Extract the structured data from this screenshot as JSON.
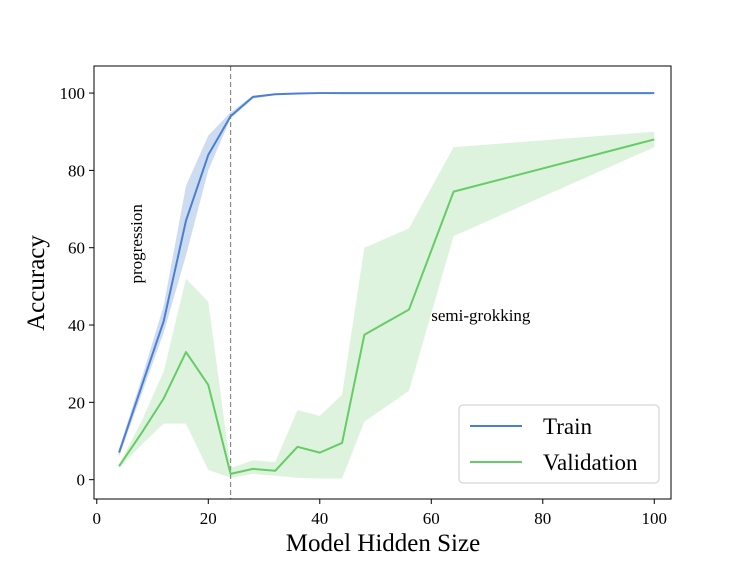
{
  "chart_data": {
    "type": "line",
    "title": "",
    "xlabel": "Model Hidden Size",
    "ylabel": "Accuracy",
    "xlim": [
      -0.5,
      103
    ],
    "ylim": [
      -5,
      107
    ],
    "xticks": [
      0,
      20,
      40,
      60,
      80,
      100
    ],
    "yticks": [
      0,
      20,
      40,
      60,
      80,
      100
    ],
    "grid": false,
    "legend_position": "lower-right",
    "vline": {
      "x": 24,
      "style": "dashed",
      "color": "#8a8a8a"
    },
    "series": [
      {
        "name": "Train",
        "color": "#4a7fd4",
        "band_color": "#c9d8f0",
        "x": [
          4,
          8,
          12,
          16,
          20,
          24,
          28,
          32,
          36,
          40,
          44,
          48,
          56,
          64,
          100
        ],
        "y": [
          7,
          24,
          41,
          67,
          84,
          94,
          99,
          99.7,
          99.9,
          100,
          100,
          100,
          100,
          100,
          100
        ],
        "low": [
          6,
          22,
          38,
          58,
          80,
          93.5,
          98.5,
          99.5,
          99.8,
          100,
          100,
          100,
          100,
          100,
          100
        ],
        "high": [
          8,
          26,
          45,
          76,
          89,
          95,
          99.3,
          99.9,
          100,
          100,
          100,
          100,
          100,
          100,
          100
        ]
      },
      {
        "name": "Validation",
        "color": "#66cc66",
        "band_color": "#d9f2d9",
        "x": [
          4,
          8,
          12,
          16,
          20,
          24,
          28,
          32,
          36,
          40,
          44,
          48,
          56,
          64,
          100
        ],
        "y": [
          3.5,
          12,
          21,
          33,
          24.5,
          1.5,
          2.8,
          2.3,
          8.5,
          7,
          9.5,
          37.5,
          44,
          74.5,
          88
        ],
        "low": [
          3,
          9,
          14.5,
          14.5,
          2.5,
          0.5,
          1.5,
          1,
          0.5,
          0.3,
          0.3,
          15,
          23,
          63,
          86
        ],
        "high": [
          4,
          15,
          28,
          52,
          46,
          3,
          5,
          4.5,
          18,
          16.5,
          22,
          60,
          65,
          86,
          90
        ]
      }
    ],
    "annotations": [
      {
        "text": "progression",
        "x": 7,
        "y": 61,
        "rotation": -90
      },
      {
        "text": "semi-grokking",
        "x": 60,
        "y": 41,
        "rotation": 0
      }
    ]
  }
}
